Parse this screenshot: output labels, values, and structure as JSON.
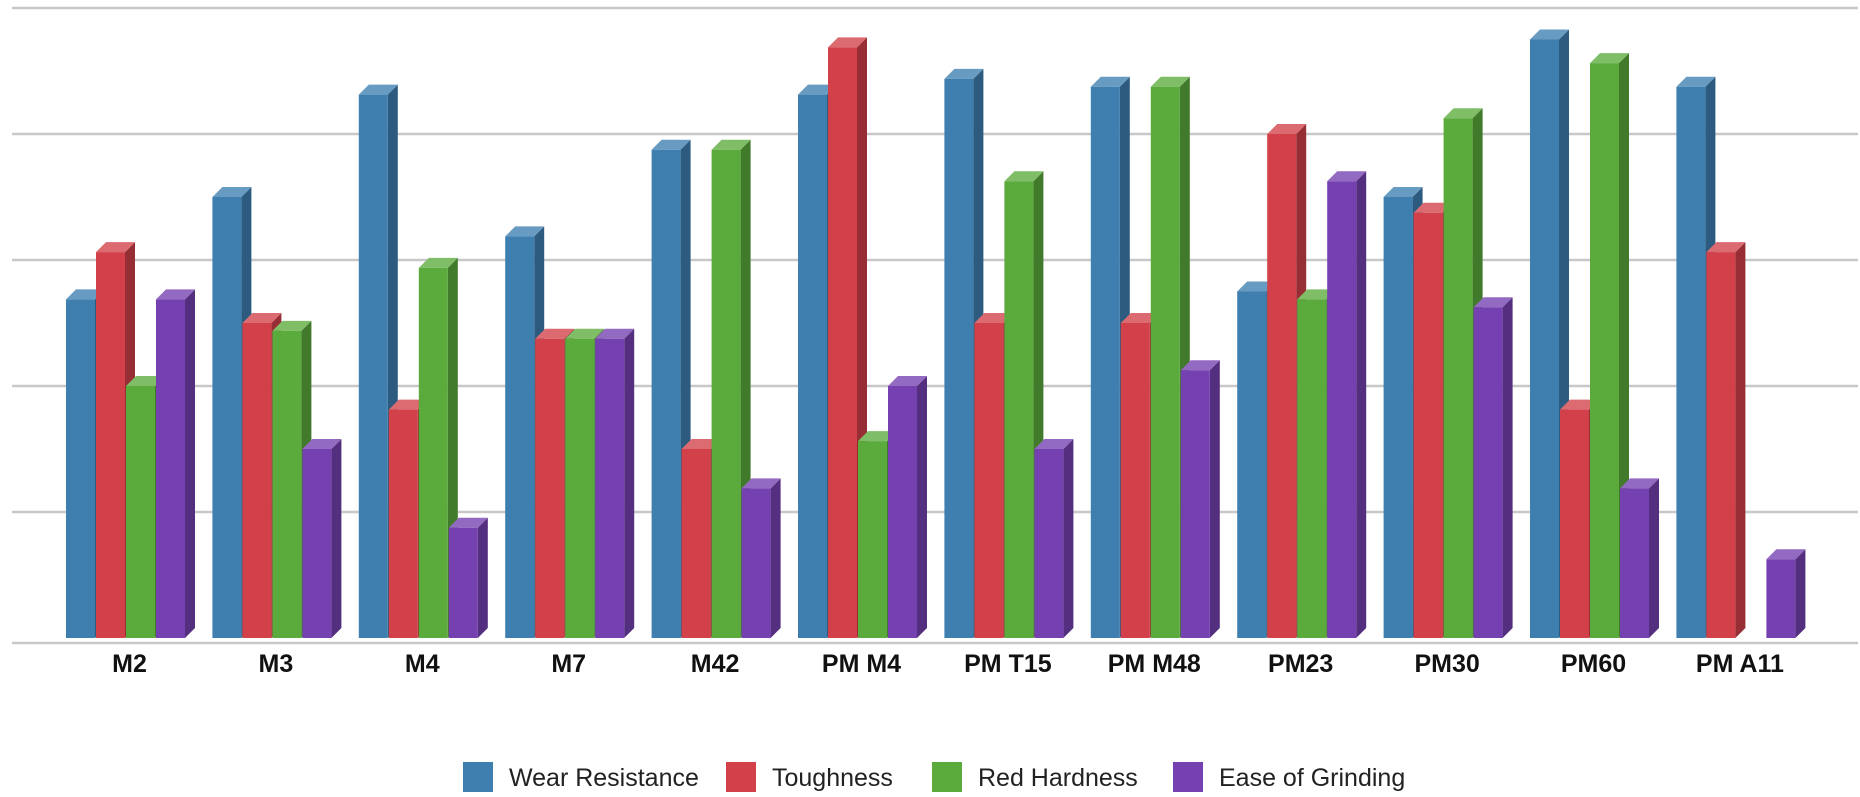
{
  "chart_data": {
    "type": "bar",
    "style": "3d-clustered-column",
    "categories": [
      "M2",
      "M3",
      "M4",
      "M7",
      "M42",
      "PM M4",
      "PM T15",
      "PM M48",
      "PM23",
      "PM30",
      "PM60",
      "PM A11"
    ],
    "series": [
      {
        "name": "Wear Resistance",
        "color": "#3E7FB0",
        "values": [
          4.3,
          5.6,
          6.9,
          5.1,
          6.2,
          6.9,
          7.1,
          7.0,
          4.4,
          5.6,
          7.6,
          7.0
        ]
      },
      {
        "name": "Toughness",
        "color": "#D24049",
        "values": [
          4.9,
          4.0,
          2.9,
          3.8,
          2.4,
          7.5,
          4.0,
          4.0,
          6.4,
          5.4,
          2.9,
          4.9
        ]
      },
      {
        "name": "Red Hardness",
        "color": "#5BAA3C",
        "values": [
          3.2,
          3.9,
          4.7,
          3.8,
          6.2,
          2.5,
          5.8,
          7.0,
          4.3,
          6.6,
          7.3,
          null
        ]
      },
      {
        "name": "Ease of Grinding",
        "color": "#7540B0",
        "values": [
          4.3,
          2.4,
          1.4,
          3.8,
          1.9,
          3.2,
          2.4,
          3.4,
          5.8,
          4.2,
          1.9,
          1.0
        ]
      }
    ],
    "ylim": [
      0,
      8
    ],
    "grid": true,
    "legend_position": "bottom"
  }
}
